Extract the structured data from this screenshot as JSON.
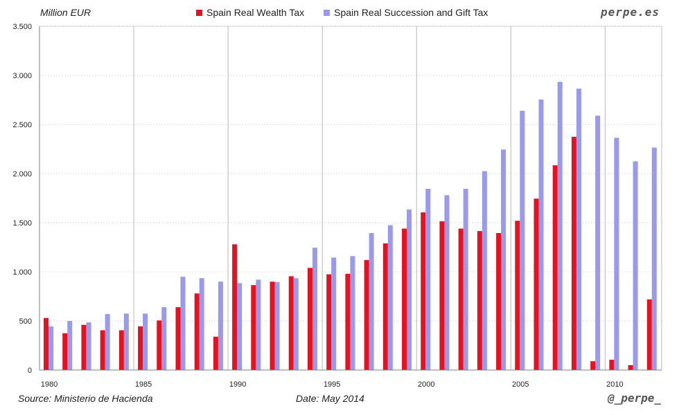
{
  "header": {
    "unit_label": "Million EUR",
    "brand": "perpe.es"
  },
  "footer": {
    "source": "Source: Ministerio de Hacienda",
    "date": "Date: May 2014",
    "handle": "@_perpe_"
  },
  "colors": {
    "wealth": "#e8111f",
    "succession": "#9999ee",
    "grid_major": "#b8b8b8",
    "grid_minor": "#dddddd",
    "axis": "#7f7f7f"
  },
  "chart_data": {
    "type": "bar",
    "title": "",
    "xlabel": "",
    "ylabel": "Million EUR",
    "ylim": [
      0,
      3500
    ],
    "yticks": [
      0,
      500,
      1000,
      1500,
      2000,
      2500,
      3000,
      3500
    ],
    "ytick_labels": [
      "0",
      "500",
      "1.000",
      "1.500",
      "2.000",
      "2.500",
      "3.000",
      "3.500"
    ],
    "categories": [
      1980,
      1981,
      1982,
      1983,
      1984,
      1985,
      1986,
      1987,
      1988,
      1989,
      1990,
      1991,
      1992,
      1993,
      1994,
      1995,
      1996,
      1997,
      1998,
      1999,
      2000,
      2001,
      2002,
      2003,
      2004,
      2005,
      2006,
      2007,
      2008,
      2009,
      2010,
      2011,
      2012
    ],
    "xtick_labels": [
      "1980",
      "1985",
      "1990",
      "1995",
      "2000",
      "2005",
      "2010"
    ],
    "xtick_years": [
      1980,
      1985,
      1990,
      1995,
      2000,
      2005,
      2010
    ],
    "series": [
      {
        "name": "Spain Real Wealth Tax",
        "values": [
          530,
          375,
          460,
          405,
          405,
          445,
          505,
          640,
          780,
          340,
          1280,
          865,
          900,
          955,
          1040,
          975,
          980,
          1120,
          1290,
          1440,
          1605,
          1515,
          1440,
          1415,
          1395,
          1520,
          1745,
          2085,
          2375,
          90,
          105,
          50,
          720
        ]
      },
      {
        "name": "Spain Real Succession and Gift Tax",
        "values": [
          445,
          500,
          485,
          570,
          575,
          575,
          640,
          950,
          935,
          900,
          885,
          920,
          895,
          935,
          1245,
          1145,
          1160,
          1395,
          1475,
          1635,
          1845,
          1780,
          1845,
          2025,
          2245,
          2640,
          2755,
          2935,
          2865,
          2590,
          2365,
          2125,
          2265
        ]
      }
    ],
    "legend_position": "top-center",
    "grid": true
  }
}
